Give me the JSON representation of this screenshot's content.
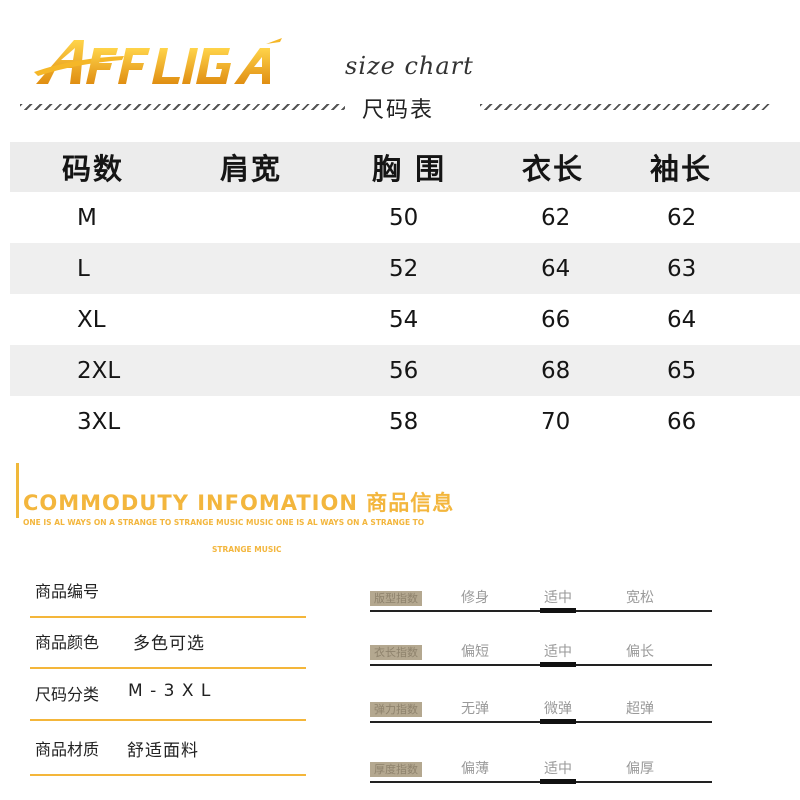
{
  "brand": {
    "logo_text": "AFFLIGA",
    "logo_gold": "#f5b728",
    "logo_dark": "#d98b10"
  },
  "header": {
    "title": "size chart",
    "title_cn": "尺码表"
  },
  "size_table": {
    "columns": [
      "码数",
      "肩宽",
      "胸 围",
      "衣长",
      "袖长"
    ],
    "rows": [
      {
        "size": "M",
        "shoulder": "",
        "chest": "50",
        "length": "62",
        "sleeve": "62"
      },
      {
        "size": "L",
        "shoulder": "",
        "chest": "52",
        "length": "64",
        "sleeve": "63"
      },
      {
        "size": "XL",
        "shoulder": "",
        "chest": "54",
        "length": "66",
        "sleeve": "64"
      },
      {
        "size": "2XL",
        "shoulder": "",
        "chest": "56",
        "length": "68",
        "sleeve": "65"
      },
      {
        "size": "3XL",
        "shoulder": "",
        "chest": "58",
        "length": "70",
        "sleeve": "66"
      }
    ]
  },
  "commodity": {
    "title": "COMMODUTY INFOMATION 商品信息",
    "subtitle": "ONE IS AL WAYS ON A STRANGE TO STRANGE MUSIC MUSIC ONE IS AL WAYS ON A STRANGE TO",
    "subtitle2": "STRANGE MUSIC",
    "accent": "#f3b63d",
    "info": [
      {
        "label": "商品编号",
        "value": ""
      },
      {
        "label": "商品颜色",
        "value": "多色可选"
      },
      {
        "label": "尺码分类",
        "value": "M - 3 X L"
      },
      {
        "label": "商品材质",
        "value": "舒适面料"
      }
    ],
    "scales": [
      {
        "swatch": "版型指数",
        "options": [
          "修身",
          "适中",
          "宽松"
        ],
        "selected": "适中"
      },
      {
        "swatch": "衣长指数",
        "options": [
          "偏短",
          "适中",
          "偏长"
        ],
        "selected": "适中"
      },
      {
        "swatch": "弹力指数",
        "options": [
          "无弹",
          "微弹",
          "超弹"
        ],
        "selected": "微弹"
      },
      {
        "swatch": "厚度指数",
        "options": [
          "偏薄",
          "适中",
          "偏厚"
        ],
        "selected": "适中"
      }
    ]
  }
}
